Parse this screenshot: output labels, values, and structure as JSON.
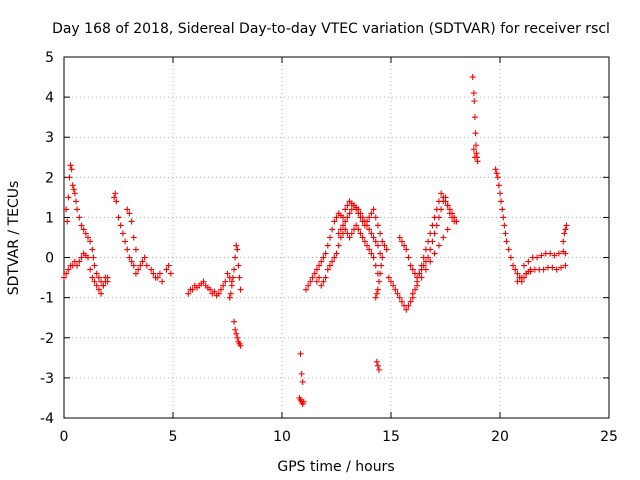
{
  "chart_data": {
    "type": "scatter",
    "title": "Day 168 of 2018, Sidereal Day-to-day VTEC variation (SDTVAR) for receiver rscl",
    "xlabel": "GPS time / hours",
    "ylabel": "SDTVAR / TECUs",
    "xlim": [
      0,
      25
    ],
    "ylim": [
      -4,
      5
    ],
    "xticks": [
      "0",
      "5",
      "10",
      "15",
      "20",
      "25"
    ],
    "yticks": [
      "-4",
      "-3",
      "-2",
      "-1",
      "0",
      "1",
      "2",
      "3",
      "4",
      "5"
    ],
    "grid": true,
    "marker": "+",
    "color": "#ff0000",
    "series": [
      {
        "name": "SDTVAR",
        "x": [
          0.0,
          0.1,
          0.2,
          0.3,
          0.4,
          0.5,
          0.6,
          0.7,
          0.8,
          0.9,
          1.0,
          1.1,
          1.2,
          1.3,
          1.4,
          1.5,
          1.6,
          1.7,
          1.8,
          1.9,
          2.0,
          0.1,
          0.15,
          0.2,
          0.25,
          0.3,
          0.35,
          0.4,
          0.45,
          0.5,
          0.55,
          0.6,
          0.7,
          0.8,
          0.9,
          1.0,
          1.1,
          1.2,
          1.3,
          1.35,
          1.4,
          1.5,
          1.6,
          1.7,
          1.8,
          1.9,
          2.0,
          2.3,
          2.35,
          2.4,
          2.5,
          2.6,
          2.7,
          2.8,
          2.9,
          3.0,
          3.1,
          3.2,
          3.3,
          3.4,
          3.5,
          3.6,
          3.7,
          3.8,
          2.9,
          3.0,
          3.1,
          3.2,
          3.3,
          4.0,
          4.1,
          4.2,
          4.3,
          4.4,
          4.5,
          4.7,
          4.8,
          4.9,
          5.7,
          5.8,
          5.9,
          6.0,
          6.1,
          6.2,
          6.3,
          6.4,
          6.5,
          6.6,
          6.7,
          6.8,
          6.9,
          7.0,
          7.1,
          7.2,
          7.3,
          7.4,
          7.5,
          7.6,
          7.7,
          7.6,
          7.65,
          7.7,
          7.75,
          7.8,
          7.85,
          7.9,
          7.95,
          8.0,
          8.05,
          8.1,
          7.8,
          7.85,
          7.9,
          7.95,
          8.0,
          8.05,
          8.1,
          10.8,
          10.85,
          10.9,
          10.95,
          11.0,
          10.85,
          10.9,
          10.95,
          11.1,
          11.2,
          11.3,
          11.4,
          11.5,
          11.6,
          11.7,
          11.8,
          11.9,
          12.0,
          12.1,
          12.2,
          12.3,
          12.4,
          12.5,
          12.6,
          12.7,
          12.8,
          12.9,
          13.0,
          13.1,
          13.2,
          13.3,
          13.4,
          13.5,
          13.6,
          13.7,
          13.8,
          13.9,
          14.0,
          14.1,
          14.2,
          14.3,
          14.4,
          14.5,
          14.6,
          14.7,
          14.8,
          11.6,
          11.7,
          11.8,
          11.9,
          12.0,
          12.1,
          12.2,
          12.3,
          12.4,
          12.5,
          12.6,
          12.7,
          12.8,
          12.9,
          13.0,
          13.1,
          13.2,
          13.3,
          13.4,
          13.5,
          13.6,
          13.7,
          13.8,
          13.9,
          14.0,
          14.1,
          14.2,
          14.3,
          14.4,
          12.6,
          12.7,
          12.8,
          12.9,
          13.0,
          13.1,
          13.2,
          13.3,
          13.4,
          13.5,
          13.6,
          13.7,
          13.8,
          13.9,
          14.0,
          14.1,
          14.2,
          14.3,
          14.4,
          14.5,
          14.6,
          14.3,
          14.35,
          14.4,
          14.45,
          14.5,
          14.55,
          14.35,
          14.4,
          14.45,
          14.9,
          15.0,
          15.1,
          15.2,
          15.3,
          15.4,
          15.5,
          15.6,
          15.7,
          15.8,
          15.9,
          16.0,
          16.1,
          16.2,
          16.3,
          16.4,
          16.5,
          16.6,
          16.7,
          16.8,
          16.9,
          17.0,
          17.1,
          17.2,
          17.3,
          17.4,
          17.5,
          17.6,
          17.7,
          17.8,
          17.9,
          18.0,
          15.4,
          15.5,
          15.6,
          15.7,
          15.8,
          15.9,
          16.0,
          16.1,
          16.2,
          16.3,
          16.4,
          16.5,
          16.6,
          16.7,
          16.8,
          16.9,
          17.0,
          17.1,
          17.2,
          17.3,
          17.4,
          17.5,
          17.6,
          17.7,
          17.8,
          17.9,
          18.0,
          16.0,
          16.2,
          16.4,
          16.6,
          16.8,
          17.0,
          17.2,
          17.4,
          17.6,
          18.75,
          18.8,
          18.82,
          18.85,
          18.88,
          18.9,
          18.92,
          18.95,
          18.97,
          18.8,
          18.85,
          19.8,
          19.85,
          19.9,
          19.95,
          20.0,
          20.05,
          20.1,
          20.15,
          20.2,
          20.25,
          20.3,
          20.4,
          20.5,
          20.6,
          20.7,
          20.8,
          20.9,
          21.0,
          21.1,
          21.2,
          21.3,
          21.4,
          20.8,
          21.0,
          21.2,
          21.4,
          21.6,
          21.8,
          22.0,
          22.2,
          22.4,
          22.6,
          22.8,
          23.0,
          20.9,
          21.1,
          21.3,
          21.5,
          21.7,
          21.9,
          22.1,
          22.3,
          22.5,
          22.7,
          22.9,
          23.0,
          22.9,
          22.95,
          23.0,
          23.05
        ],
        "y": [
          -0.5,
          -0.4,
          -0.3,
          -0.2,
          -0.2,
          -0.1,
          -0.2,
          -0.1,
          0.0,
          0.1,
          0.05,
          0.0,
          -0.3,
          -0.5,
          -0.6,
          -0.7,
          -0.8,
          -0.9,
          -0.7,
          -0.5,
          -0.6,
          1.2,
          0.9,
          1.5,
          2.0,
          2.3,
          2.2,
          1.8,
          1.7,
          1.6,
          1.4,
          1.2,
          1.0,
          0.8,
          0.7,
          0.6,
          0.5,
          0.4,
          0.2,
          0.0,
          -0.2,
          -0.4,
          -0.5,
          -0.6,
          -0.7,
          -0.6,
          -0.5,
          1.5,
          1.6,
          1.4,
          1.0,
          0.8,
          0.6,
          0.4,
          0.2,
          0.0,
          -0.1,
          -0.2,
          -0.4,
          -0.3,
          -0.2,
          -0.1,
          0.0,
          -0.2,
          1.2,
          1.1,
          0.9,
          0.5,
          0.2,
          -0.3,
          -0.4,
          -0.5,
          -0.5,
          -0.4,
          -0.6,
          -0.3,
          -0.2,
          -0.4,
          -0.9,
          -0.8,
          -0.8,
          -0.7,
          -0.75,
          -0.7,
          -0.65,
          -0.6,
          -0.7,
          -0.75,
          -0.8,
          -0.9,
          -0.85,
          -0.95,
          -0.9,
          -0.8,
          -0.7,
          -0.6,
          -0.4,
          -0.5,
          -0.6,
          -1.0,
          -0.9,
          -0.7,
          -0.5,
          -0.3,
          0.0,
          0.3,
          0.2,
          -0.2,
          -0.5,
          -0.8,
          -1.6,
          -1.8,
          -1.9,
          -2.0,
          -2.1,
          -2.15,
          -2.2,
          -3.5,
          -3.55,
          -3.6,
          -3.65,
          -3.6,
          -2.4,
          -2.9,
          -3.1,
          -0.8,
          -0.7,
          -0.6,
          -0.5,
          -0.4,
          -0.3,
          -0.2,
          -0.1,
          0.0,
          0.1,
          0.3,
          0.5,
          0.7,
          0.9,
          1.0,
          1.1,
          1.05,
          1.0,
          1.2,
          1.3,
          1.4,
          1.35,
          1.3,
          1.2,
          1.1,
          1.0,
          0.9,
          0.8,
          0.9,
          1.0,
          1.1,
          1.2,
          1.0,
          0.8,
          0.6,
          0.4,
          0.3,
          0.2,
          -0.6,
          -0.5,
          -0.7,
          -0.6,
          -0.5,
          -0.3,
          -0.2,
          -0.1,
          0.0,
          0.1,
          0.3,
          0.5,
          0.6,
          0.7,
          0.6,
          0.5,
          0.6,
          0.7,
          0.8,
          0.7,
          0.6,
          0.5,
          0.4,
          0.3,
          0.2,
          0.1,
          0.0,
          -0.2,
          -0.4,
          0.6,
          0.7,
          0.8,
          0.9,
          1.0,
          1.1,
          1.2,
          1.3,
          1.25,
          1.2,
          1.1,
          1.0,
          0.9,
          0.8,
          0.7,
          0.6,
          0.5,
          0.4,
          0.3,
          0.1,
          0.0,
          -1.0,
          -0.9,
          -0.8,
          -0.6,
          -0.4,
          -0.2,
          -2.6,
          -2.7,
          -2.8,
          -0.5,
          -0.6,
          -0.7,
          -0.8,
          -0.9,
          -1.0,
          -1.1,
          -1.2,
          -1.3,
          -1.2,
          -1.1,
          -1.0,
          -0.8,
          -0.6,
          -0.4,
          -0.2,
          0.0,
          0.2,
          0.4,
          0.6,
          0.8,
          1.0,
          1.2,
          1.4,
          1.6,
          1.5,
          1.4,
          1.3,
          1.2,
          1.1,
          1.0,
          0.9,
          0.5,
          0.4,
          0.3,
          0.2,
          0.0,
          -0.2,
          -0.3,
          -0.4,
          -0.5,
          -0.4,
          -0.3,
          -0.2,
          -0.1,
          0.0,
          0.2,
          0.4,
          0.6,
          0.8,
          1.0,
          1.2,
          1.4,
          1.5,
          1.3,
          1.1,
          1.0,
          0.9,
          0.9,
          -0.9,
          -0.7,
          -0.5,
          -0.3,
          -0.1,
          0.1,
          0.3,
          0.5,
          0.7,
          4.5,
          4.1,
          3.9,
          3.5,
          3.1,
          2.8,
          2.6,
          2.5,
          2.4,
          2.7,
          2.5,
          2.2,
          2.1,
          2.0,
          1.8,
          1.6,
          1.4,
          1.2,
          1.0,
          0.8,
          0.6,
          0.4,
          0.2,
          0.0,
          -0.2,
          -0.3,
          -0.4,
          -0.5,
          -0.6,
          -0.5,
          -0.4,
          -0.35,
          -0.3,
          -0.6,
          -0.5,
          -0.4,
          -0.35,
          -0.3,
          -0.3,
          -0.3,
          -0.25,
          -0.25,
          -0.3,
          -0.25,
          -0.2,
          -0.5,
          -0.2,
          -0.1,
          0.0,
          0.0,
          0.05,
          0.1,
          0.1,
          0.05,
          0.1,
          0.15,
          0.1,
          0.4,
          0.6,
          0.7,
          0.8
        ]
      }
    ]
  }
}
